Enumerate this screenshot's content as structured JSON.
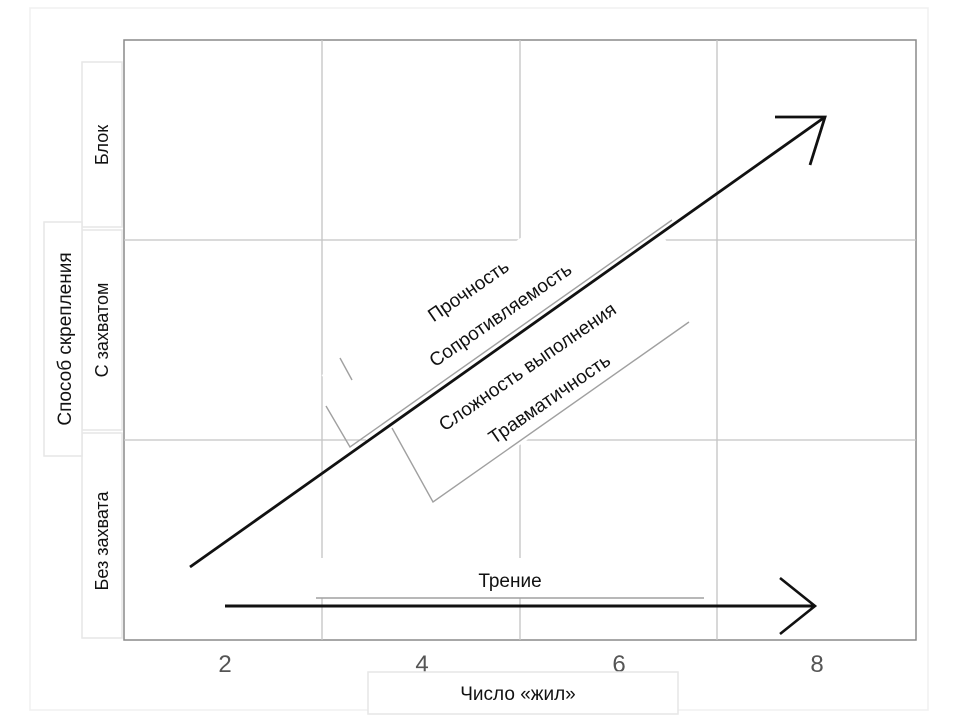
{
  "diagram": {
    "x_axis": {
      "label": "Число «жил»",
      "ticks": [
        "2",
        "4",
        "6",
        "8"
      ]
    },
    "y_axis": {
      "label": "Способ скрепления",
      "categories": [
        "Без захвата",
        "С захватом",
        "Блок"
      ]
    },
    "diagonal_arrow": {
      "labels": [
        "Прочность",
        "Сопротивляемость",
        "Сложность выполнения",
        "Травматичность"
      ]
    },
    "horizontal_arrow": {
      "label": "Трение"
    }
  }
}
